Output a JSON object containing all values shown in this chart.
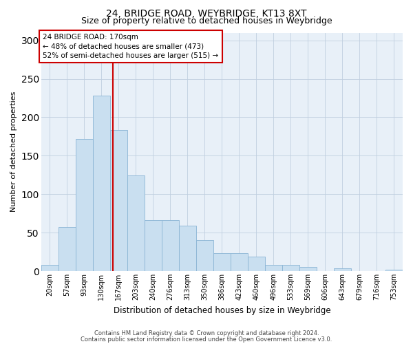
{
  "title": "24, BRIDGE ROAD, WEYBRIDGE, KT13 8XT",
  "subtitle": "Size of property relative to detached houses in Weybridge",
  "xlabel": "Distribution of detached houses by size in Weybridge",
  "ylabel": "Number of detached properties",
  "bin_labels": [
    "20sqm",
    "57sqm",
    "93sqm",
    "130sqm",
    "167sqm",
    "203sqm",
    "240sqm",
    "276sqm",
    "313sqm",
    "350sqm",
    "386sqm",
    "423sqm",
    "460sqm",
    "496sqm",
    "533sqm",
    "569sqm",
    "606sqm",
    "643sqm",
    "679sqm",
    "716sqm",
    "753sqm"
  ],
  "bar_values": [
    8,
    57,
    172,
    228,
    183,
    124,
    66,
    66,
    59,
    40,
    23,
    23,
    19,
    8,
    8,
    5,
    0,
    4,
    0,
    0,
    2
  ],
  "bar_color": "#c9dff0",
  "bar_edge_color": "#8ab4d4",
  "vline_color": "#cc0000",
  "vline_x_index": 4,
  "annotation_line1": "24 BRIDGE ROAD: 170sqm",
  "annotation_line2": "← 48% of detached houses are smaller (473)",
  "annotation_line3": "52% of semi-detached houses are larger (515) →",
  "annotation_box_facecolor": "#ffffff",
  "annotation_box_edgecolor": "#cc0000",
  "ylim": [
    0,
    310
  ],
  "yticks": [
    0,
    50,
    100,
    150,
    200,
    250,
    300
  ],
  "grid_color": "#c0cfe0",
  "background_color": "#e8f0f8",
  "footer1": "Contains HM Land Registry data © Crown copyright and database right 2024.",
  "footer2": "Contains public sector information licensed under the Open Government Licence v3.0.",
  "title_fontsize": 10,
  "subtitle_fontsize": 9,
  "ylabel_fontsize": 8,
  "xlabel_fontsize": 8.5,
  "tick_fontsize": 7,
  "footer_fontsize": 6,
  "annot_fontsize": 7.5
}
